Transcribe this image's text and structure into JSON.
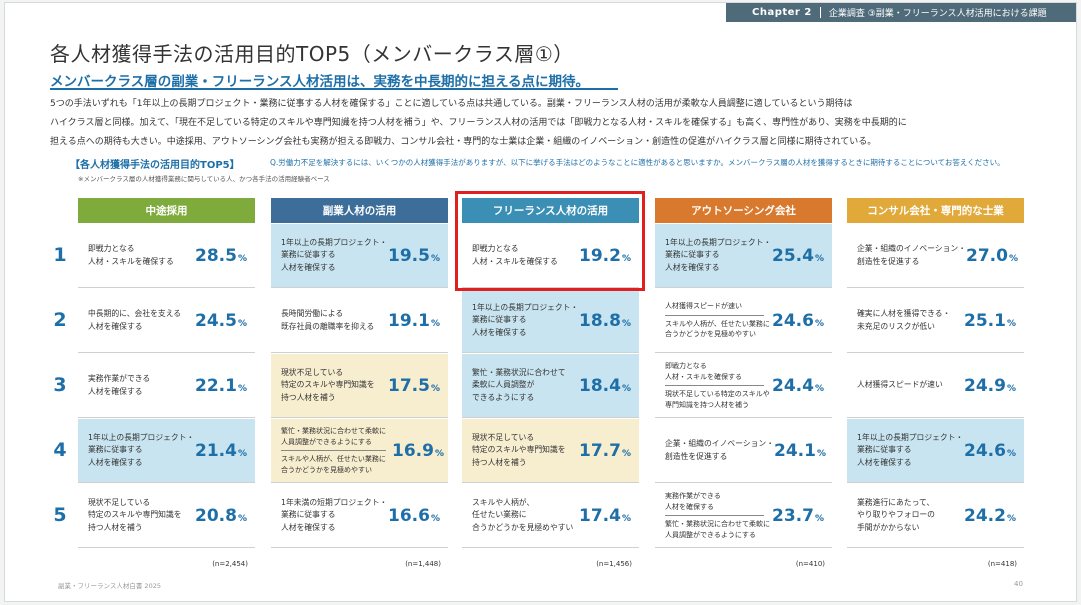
{
  "header": {
    "chapter": "Chapter 2",
    "section": "企業調査 ③副業・フリーランス人材活用における課題"
  },
  "title": "各人材獲得手法の活用目的TOP5（メンバークラス層①）",
  "subtitle": "メンバークラス層の副業・フリーランス人材活用は、実務を中長期的に担える点に期待。",
  "body_lines": [
    "5つの手法いずれも「1年以上の長期プロジェクト・業務に従事する人材を確保する」ことに適している点は共通している。副業・フリーランス人材の活用が柔軟な人員調整に適しているという期待は",
    "ハイクラス層と同様。加えて、「現在不足している特定のスキルや専門知識を持つ人材を補う」や、フリーランス人材の活用では「即戦力となる人材・スキルを確保する」も高く、専門性があり、実務を中長期的に",
    "担える点への期待も大きい。中途採用、アウトソーシング会社も実務が担える即戦力、コンサル会社・専門的な士業は企業・組織のイノベーション・創造性の促進がハイクラス層と同様に期待されている。"
  ],
  "section_label": "【各人材獲得手法の活用目的TOP5】",
  "question": "Q.労働力不足を解決するには、いくつかの人材獲得手法がありますが、以下に挙げる手法はどのようなことに適性があると思いますか。メンバークラス層の人材を獲得するときに期待することについてお答えください。",
  "note": "※メンバークラス層の人材獲得業務に関与している人、かつ各手法の活用経験者ベース",
  "ranks": [
    "1",
    "2",
    "3",
    "4",
    "5"
  ],
  "pct_unit": "%",
  "columns": [
    {
      "name": "中途採用",
      "color": "#7faa3c",
      "n": "(n=2,454)",
      "rows": [
        {
          "lines": [
            "即戦力となる",
            "人材・スキルを確保する"
          ],
          "value": "28.5"
        },
        {
          "lines": [
            "中長期的に、会社を支える",
            "人材を確保する"
          ],
          "value": "24.5"
        },
        {
          "lines": [
            "実務作業ができる",
            "人材を確保する"
          ],
          "value": "22.1"
        },
        {
          "lines": [
            "1年以上の長期プロジェクト・",
            "業務に従事する",
            "人材を確保する"
          ],
          "value": "21.4",
          "hl": "blue"
        },
        {
          "lines": [
            "現状不足している",
            "特定のスキルや専門知識を",
            "持つ人材を補う"
          ],
          "value": "20.8"
        }
      ]
    },
    {
      "name": "副業人材の活用",
      "color": "#3d6e99",
      "n": "(n=1,448)",
      "rows": [
        {
          "lines": [
            "1年以上の長期プロジェクト・",
            "業務に従事する",
            "人材を確保する"
          ],
          "value": "19.5",
          "hl": "blue"
        },
        {
          "lines": [
            "長時間労働による",
            "既存社員の離職率を抑える"
          ],
          "value": "19.1"
        },
        {
          "lines": [
            "現状不足している",
            "特定のスキルや専門知識を",
            "持つ人材を補う"
          ],
          "value": "17.5",
          "hl": "yellow"
        },
        {
          "tie_a": [
            "繁忙・業務状況に合わせて柔軟に",
            "人員調整ができるようにする"
          ],
          "tie_b": [
            "スキルや人柄が、任せたい業務に",
            "合うかどうかを見極めやすい"
          ],
          "value": "16.9",
          "hl": "yellow"
        },
        {
          "lines": [
            "1年未満の短期プロジェクト・",
            "業務に従事する",
            "人材を確保する"
          ],
          "value": "16.6"
        }
      ]
    },
    {
      "name": "フリーランス人材の活用",
      "color": "#3b8fb5",
      "n": "(n=1,456)",
      "rows": [
        {
          "lines": [
            "即戦力となる",
            "人材・スキルを確保する"
          ],
          "value": "19.2"
        },
        {
          "lines": [
            "1年以上の長期プロジェクト・",
            "業務に従事する",
            "人材を確保する"
          ],
          "value": "18.8",
          "hl": "blue"
        },
        {
          "lines": [
            "繁忙・業務状況に合わせて",
            "柔軟に人員調整が",
            "できるようにする"
          ],
          "value": "18.4",
          "hl": "blue"
        },
        {
          "lines": [
            "現状不足している",
            "特定のスキルや専門知識を",
            "持つ人材を補う"
          ],
          "value": "17.7",
          "hl": "yellow"
        },
        {
          "lines": [
            "スキルや人柄が、",
            "任せたい業務に",
            "合うかどうかを見極めやすい"
          ],
          "value": "17.4"
        }
      ]
    },
    {
      "name": "アウトソーシング会社",
      "color": "#d9792e",
      "n": "(n=410)",
      "rows": [
        {
          "lines": [
            "1年以上の長期プロジェクト・",
            "業務に従事する",
            "人材を確保する"
          ],
          "value": "25.4",
          "hl": "blue"
        },
        {
          "tie_a": [
            "人材獲得スピードが速い"
          ],
          "tie_b": [
            "スキルや人柄が、任せたい業務に",
            "合うかどうかを見極めやすい"
          ],
          "value": "24.6"
        },
        {
          "tie_a": [
            "即戦力となる",
            "人材・スキルを確保する"
          ],
          "tie_b": [
            "現状不足している特定のスキルや",
            "専門知識を持つ人材を補う"
          ],
          "value": "24.4"
        },
        {
          "lines": [
            "企業・組織のイノベーション・",
            "創造性を促進する"
          ],
          "value": "24.1"
        },
        {
          "tie_a": [
            "実務作業ができる",
            "人材を確保する"
          ],
          "tie_b": [
            "繁忙・業務状況に合わせて柔軟に",
            "人員調整ができるようにする"
          ],
          "value": "23.7"
        }
      ]
    },
    {
      "name": "コンサル会社・専門的な士業",
      "color": "#e0a93a",
      "n": "(n=418)",
      "rows": [
        {
          "lines": [
            "企業・組織のイノベーション・",
            "創造性を促進する"
          ],
          "value": "27.0"
        },
        {
          "lines": [
            "確実に人材を獲得できる・",
            "未充足のリスクが低い"
          ],
          "value": "25.1"
        },
        {
          "lines": [
            "人材獲得スピードが速い"
          ],
          "value": "24.9"
        },
        {
          "lines": [
            "1年以上の長期プロジェクト・",
            "業務に従事する",
            "人材を確保する"
          ],
          "value": "24.6",
          "hl": "blue"
        },
        {
          "lines": [
            "業務進行にあたって、",
            "やり取りやフォローの",
            "手間がかからない"
          ],
          "value": "24.2"
        }
      ]
    }
  ],
  "footer": {
    "left": "副業・フリーランス人材白書 2025",
    "page": "40"
  }
}
